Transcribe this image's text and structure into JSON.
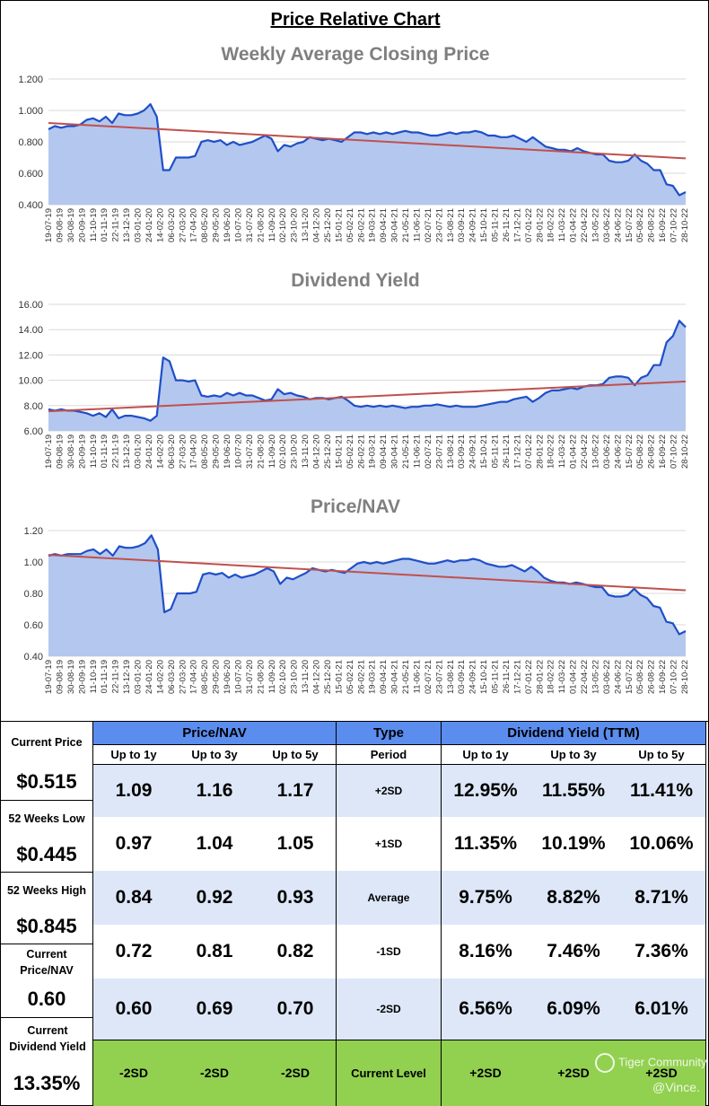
{
  "page_title": "Price Relative Chart",
  "colors": {
    "area_fill": "#b4c7ee",
    "line": "#1f4fc8",
    "trend": "#c0504d",
    "grid": "#d9d9d9",
    "header_blue": "#5b8def",
    "row_light": "#dde7f7",
    "green": "#92d050"
  },
  "chart_data": [
    {
      "type": "area",
      "title": "Weekly Average Closing Price",
      "ylim": [
        0.4,
        1.2
      ],
      "yticks": [
        "0.400",
        "0.600",
        "0.800",
        "1.000",
        "1.200"
      ],
      "ytick_values": [
        0.4,
        0.6,
        0.8,
        1.0,
        1.2
      ],
      "xtick_labels": [
        "19-07-19",
        "09-08-19",
        "30-08-19",
        "20-09-19",
        "11-10-19",
        "01-11-19",
        "22-11-19",
        "13-12-19",
        "03-01-20",
        "24-01-20",
        "14-02-20",
        "06-03-20",
        "27-03-20",
        "17-04-20",
        "08-05-20",
        "29-05-20",
        "19-06-20",
        "10-07-20",
        "31-07-20",
        "21-08-20",
        "11-09-20",
        "02-10-20",
        "23-10-20",
        "13-11-20",
        "04-12-20",
        "25-12-20",
        "15-01-21",
        "05-02-21",
        "26-02-21",
        "19-03-21",
        "09-04-21",
        "30-04-21",
        "21-05-21",
        "11-06-21",
        "02-07-21",
        "23-07-21",
        "13-08-21",
        "03-09-21",
        "24-09-21",
        "15-10-21",
        "05-11-21",
        "26-11-21",
        "17-12-21",
        "07-01-22",
        "28-01-22",
        "18-02-22",
        "11-03-22",
        "01-04-22",
        "22-04-22",
        "13-05-22",
        "03-06-22",
        "24-06-22",
        "15-07-22",
        "05-08-22",
        "26-08-22",
        "16-09-22",
        "07-10-22",
        "28-10-22"
      ],
      "values": [
        0.88,
        0.9,
        0.89,
        0.9,
        0.9,
        0.91,
        0.94,
        0.95,
        0.93,
        0.96,
        0.92,
        0.98,
        0.97,
        0.97,
        0.98,
        1.0,
        1.04,
        0.96,
        0.62,
        0.62,
        0.7,
        0.7,
        0.7,
        0.71,
        0.8,
        0.81,
        0.8,
        0.81,
        0.78,
        0.8,
        0.78,
        0.79,
        0.8,
        0.82,
        0.84,
        0.82,
        0.74,
        0.78,
        0.77,
        0.79,
        0.8,
        0.83,
        0.82,
        0.81,
        0.82,
        0.81,
        0.8,
        0.83,
        0.86,
        0.86,
        0.85,
        0.86,
        0.85,
        0.86,
        0.85,
        0.86,
        0.87,
        0.86,
        0.86,
        0.85,
        0.84,
        0.84,
        0.85,
        0.86,
        0.85,
        0.86,
        0.86,
        0.87,
        0.86,
        0.84,
        0.84,
        0.83,
        0.83,
        0.84,
        0.82,
        0.8,
        0.83,
        0.8,
        0.77,
        0.76,
        0.75,
        0.75,
        0.74,
        0.76,
        0.74,
        0.73,
        0.72,
        0.72,
        0.68,
        0.67,
        0.67,
        0.68,
        0.72,
        0.68,
        0.66,
        0.62,
        0.62,
        0.53,
        0.52,
        0.46,
        0.48
      ],
      "trend": [
        0.92,
        0.695
      ]
    },
    {
      "type": "area",
      "title": "Dividend Yield",
      "ylim": [
        6,
        16
      ],
      "yticks": [
        "6.00",
        "8.00",
        "10.00",
        "12.00",
        "14.00",
        "16.00"
      ],
      "ytick_values": [
        6,
        8,
        10,
        12,
        14,
        16
      ],
      "xtick_labels": [
        "19-07-19",
        "09-08-19",
        "30-08-19",
        "20-09-19",
        "11-10-19",
        "01-11-19",
        "22-11-19",
        "13-12-19",
        "03-01-20",
        "24-01-20",
        "14-02-20",
        "06-03-20",
        "27-03-20",
        "17-04-20",
        "08-05-20",
        "29-05-20",
        "19-06-20",
        "10-07-20",
        "31-07-20",
        "21-08-20",
        "11-09-20",
        "02-10-20",
        "23-10-20",
        "13-11-20",
        "04-12-20",
        "25-12-20",
        "15-01-21",
        "05-02-21",
        "26-02-21",
        "19-03-21",
        "09-04-21",
        "30-04-21",
        "21-05-21",
        "11-06-21",
        "02-07-21",
        "23-07-21",
        "13-08-21",
        "03-09-21",
        "24-09-21",
        "15-10-21",
        "05-11-21",
        "26-11-21",
        "17-12-21",
        "07-01-22",
        "28-01-22",
        "18-02-22",
        "11-03-22",
        "01-04-22",
        "22-04-22",
        "13-05-22",
        "03-06-22",
        "24-06-22",
        "15-07-22",
        "05-08-22",
        "26-08-22",
        "16-09-22",
        "07-10-22",
        "28-10-22"
      ],
      "values": [
        7.7,
        7.6,
        7.7,
        7.6,
        7.6,
        7.5,
        7.4,
        7.2,
        7.4,
        7.1,
        7.7,
        7.0,
        7.2,
        7.2,
        7.1,
        7.0,
        6.8,
        7.2,
        11.8,
        11.5,
        10.0,
        10.0,
        9.9,
        10.0,
        8.8,
        8.7,
        8.8,
        8.7,
        9.0,
        8.8,
        9.0,
        8.8,
        8.8,
        8.6,
        8.4,
        8.5,
        9.3,
        8.9,
        9.0,
        8.8,
        8.7,
        8.5,
        8.6,
        8.6,
        8.5,
        8.6,
        8.7,
        8.4,
        8.0,
        7.9,
        8.0,
        7.9,
        8.0,
        7.9,
        8.0,
        7.9,
        7.8,
        7.9,
        7.9,
        8.0,
        8.0,
        8.1,
        8.0,
        7.9,
        8.0,
        7.9,
        7.9,
        7.9,
        8.0,
        8.1,
        8.2,
        8.3,
        8.3,
        8.5,
        8.6,
        8.7,
        8.3,
        8.6,
        9.0,
        9.2,
        9.2,
        9.3,
        9.4,
        9.3,
        9.5,
        9.6,
        9.6,
        9.7,
        10.2,
        10.3,
        10.3,
        10.2,
        9.6,
        10.2,
        10.4,
        11.2,
        11.2,
        13.0,
        13.5,
        14.7,
        14.2
      ],
      "trend": [
        7.55,
        9.9
      ]
    },
    {
      "type": "area",
      "title": "Price/NAV",
      "ylim": [
        0.4,
        1.2
      ],
      "yticks": [
        "0.40",
        "0.60",
        "0.80",
        "1.00",
        "1.20"
      ],
      "ytick_values": [
        0.4,
        0.6,
        0.8,
        1.0,
        1.2
      ],
      "xtick_labels": [
        "19-07-19",
        "09-08-19",
        "30-08-19",
        "20-09-19",
        "11-10-19",
        "01-11-19",
        "22-11-19",
        "13-12-19",
        "03-01-20",
        "24-01-20",
        "14-02-20",
        "06-03-20",
        "27-03-20",
        "17-04-20",
        "08-05-20",
        "29-05-20",
        "19-06-20",
        "10-07-20",
        "31-07-20",
        "21-08-20",
        "11-09-20",
        "02-10-20",
        "23-10-20",
        "13-11-20",
        "04-12-20",
        "25-12-20",
        "15-01-21",
        "05-02-21",
        "26-02-21",
        "19-03-21",
        "09-04-21",
        "30-04-21",
        "21-05-21",
        "11-06-21",
        "02-07-21",
        "23-07-21",
        "13-08-21",
        "03-09-21",
        "24-09-21",
        "15-10-21",
        "05-11-21",
        "26-11-21",
        "17-12-21",
        "07-01-22",
        "28-01-22",
        "18-02-22",
        "11-03-22",
        "01-04-22",
        "22-04-22",
        "13-05-22",
        "03-06-22",
        "24-06-22",
        "15-07-22",
        "05-08-22",
        "26-08-22",
        "16-09-22",
        "07-10-22",
        "28-10-22"
      ],
      "values": [
        1.04,
        1.05,
        1.04,
        1.05,
        1.05,
        1.05,
        1.07,
        1.08,
        1.05,
        1.08,
        1.04,
        1.1,
        1.09,
        1.09,
        1.1,
        1.12,
        1.17,
        1.08,
        0.68,
        0.7,
        0.8,
        0.8,
        0.8,
        0.81,
        0.92,
        0.93,
        0.92,
        0.93,
        0.9,
        0.92,
        0.9,
        0.91,
        0.92,
        0.94,
        0.96,
        0.94,
        0.86,
        0.9,
        0.89,
        0.91,
        0.93,
        0.96,
        0.95,
        0.94,
        0.95,
        0.94,
        0.93,
        0.96,
        0.99,
        1.0,
        0.99,
        1.0,
        0.99,
        1.0,
        1.01,
        1.02,
        1.02,
        1.01,
        1.0,
        0.99,
        0.99,
        1.0,
        1.01,
        1.0,
        1.01,
        1.01,
        1.02,
        1.01,
        0.99,
        0.98,
        0.97,
        0.97,
        0.98,
        0.96,
        0.94,
        0.97,
        0.94,
        0.9,
        0.88,
        0.87,
        0.87,
        0.86,
        0.87,
        0.86,
        0.85,
        0.84,
        0.84,
        0.79,
        0.78,
        0.78,
        0.79,
        0.83,
        0.79,
        0.77,
        0.72,
        0.71,
        0.62,
        0.61,
        0.54,
        0.56
      ],
      "trend": [
        1.045,
        0.82
      ]
    }
  ],
  "stats": {
    "left_panel": [
      {
        "label": "Current Price",
        "value": "$0.515"
      },
      {
        "label": "52 Weeks Low",
        "value": "$0.445"
      },
      {
        "label": "52 Weeks High",
        "value": "$0.845"
      },
      {
        "label": "Current Price/NAV",
        "value": "0.60"
      },
      {
        "label": "Current Dividend Yield",
        "value": "13.35%"
      }
    ],
    "pnav_header": "Price/NAV",
    "type_header": "Type",
    "dy_header": "Dividend Yield (TTM)",
    "sub_headers": {
      "up1": "Up to 1y",
      "up3": "Up to 3y",
      "up5": "Up to 5y",
      "period": "Period"
    },
    "rows": [
      {
        "period": "+2SD",
        "pnav": [
          "1.09",
          "1.16",
          "1.17"
        ],
        "dy": [
          "12.95%",
          "11.55%",
          "11.41%"
        ]
      },
      {
        "period": "+1SD",
        "pnav": [
          "0.97",
          "1.04",
          "1.05"
        ],
        "dy": [
          "11.35%",
          "10.19%",
          "10.06%"
        ]
      },
      {
        "period": "Average",
        "pnav": [
          "0.84",
          "0.92",
          "0.93"
        ],
        "dy": [
          "9.75%",
          "8.82%",
          "8.71%"
        ]
      },
      {
        "period": "-1SD",
        "pnav": [
          "0.72",
          "0.81",
          "0.82"
        ],
        "dy": [
          "8.16%",
          "7.46%",
          "7.36%"
        ]
      },
      {
        "period": "-2SD",
        "pnav": [
          "0.60",
          "0.69",
          "0.70"
        ],
        "dy": [
          "6.56%",
          "6.09%",
          "6.01%"
        ]
      }
    ],
    "current_level": {
      "label": "Current Level",
      "pnav": [
        "-2SD",
        "-2SD",
        "-2SD"
      ],
      "dy": [
        "+2SD",
        "+2SD",
        "+2SD"
      ]
    }
  },
  "watermark": {
    "brand": "Tiger Community",
    "handle": "@Vince."
  }
}
